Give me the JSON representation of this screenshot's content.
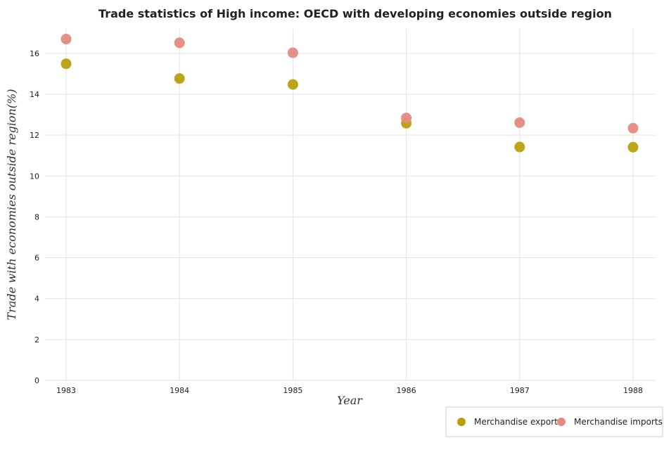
{
  "chart_data": {
    "type": "scatter",
    "title": "Trade statistics of High income: OECD with developing economies outside region",
    "xlabel": "Year",
    "ylabel": "Trade with economies outside region(%)",
    "categories": [
      "1983",
      "1984",
      "1985",
      "1986",
      "1987",
      "1988"
    ],
    "ylim": [
      0,
      17.2
    ],
    "yticks": [
      "0",
      "2",
      "4",
      "6",
      "8",
      "10",
      "12",
      "14",
      "16"
    ],
    "grid": true,
    "legend_position": "bottom-right",
    "series": [
      {
        "name": "Merchandise exports",
        "color": "#b8a00a",
        "values": [
          15.49,
          14.77,
          14.48,
          12.58,
          11.42,
          11.41
        ]
      },
      {
        "name": "Merchandise imports",
        "color": "#e48a80",
        "values": [
          16.7,
          16.52,
          16.03,
          12.84,
          12.61,
          12.34
        ]
      }
    ]
  }
}
